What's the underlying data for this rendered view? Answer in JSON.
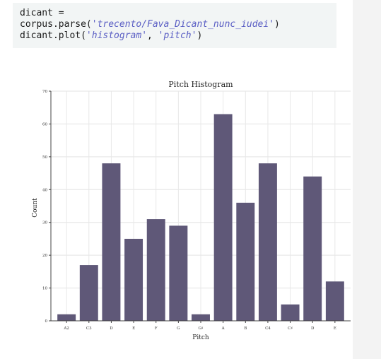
{
  "code": {
    "line1": "dicant =",
    "line2_prefix": "corpus.parse(",
    "line2_string": "'trecento/Fava_Dicant_nunc_iudei'",
    "line2_suffix": ")",
    "line3_prefix": "dicant.plot(",
    "line3_arg1": "'histogram'",
    "line3_sep": ", ",
    "line3_arg2": "'pitch'",
    "line3_suffix": ")"
  },
  "chart_data": {
    "type": "bar",
    "title": "Pitch Histogram",
    "xlabel": "Pitch",
    "ylabel": "Count",
    "categories": [
      "A2",
      "C3",
      "D",
      "E",
      "F",
      "G",
      "G♯",
      "A",
      "B",
      "C4",
      "C♯",
      "D",
      "E"
    ],
    "values": [
      2,
      17,
      48,
      25,
      31,
      29,
      2,
      63,
      36,
      48,
      5,
      44,
      12
    ],
    "ylim": [
      0,
      70
    ],
    "yticks": [
      0,
      10,
      20,
      30,
      40,
      50,
      60,
      70
    ],
    "grid": true,
    "bar_color": "#5f5878"
  }
}
